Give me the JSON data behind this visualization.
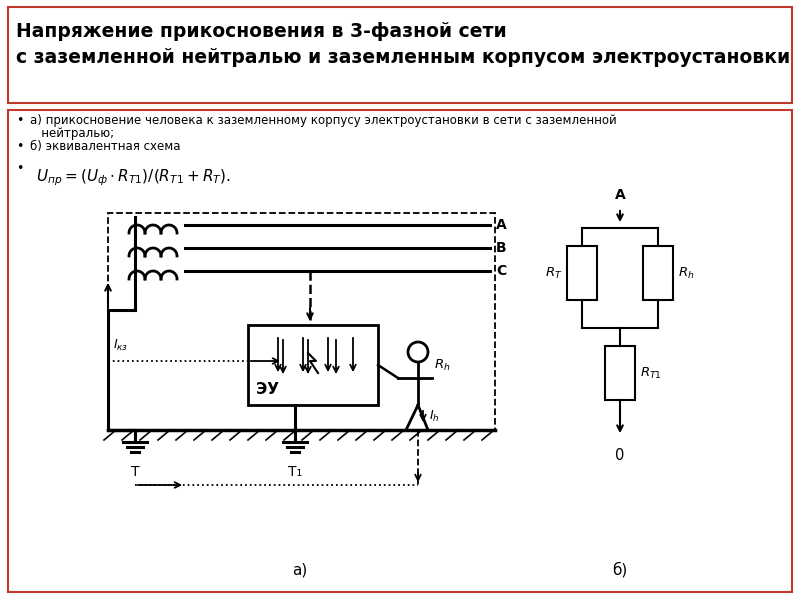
{
  "title_line1": "Напряжение прикосновения в 3-фазной сети",
  "title_line2": "с заземленной нейтралью и заземленным корпусом электроустановки",
  "bullet1a": "а) прикосновение человека к заземленному корпусу электроустановки в сети с заземленной",
  "bullet1b": "нейтралью;",
  "bullet2": "б) эквивалентная схема",
  "formula": "$U_{пр} = (U_{ф} \\cdot R_{T1}) / (R_{T1} + R_{T}).$",
  "label_a": "а)",
  "label_b": "б)",
  "bg_color": "#ffffff",
  "border_color": "#c0392b",
  "dc": "#000000"
}
